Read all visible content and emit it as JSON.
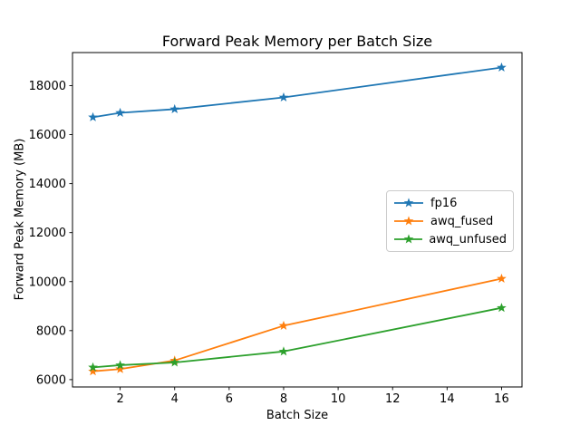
{
  "chart_data": {
    "type": "line",
    "title": "Forward Peak Memory per Batch Size",
    "xlabel": "Batch Size",
    "ylabel": "Forward Peak Memory (MB)",
    "x": [
      1,
      2,
      4,
      8,
      16
    ],
    "series": [
      {
        "name": "fp16",
        "color": "#1f77b4",
        "marker": "star",
        "values": [
          16710,
          16890,
          17040,
          17520,
          18740
        ]
      },
      {
        "name": "awq_fused",
        "color": "#ff7f0e",
        "marker": "star",
        "values": [
          6340,
          6430,
          6780,
          8200,
          10120
        ]
      },
      {
        "name": "awq_unfused",
        "color": "#2ca02c",
        "marker": "star",
        "values": [
          6500,
          6590,
          6700,
          7150,
          8930
        ]
      }
    ],
    "xticks": [
      2,
      4,
      6,
      8,
      10,
      12,
      14,
      16
    ],
    "yticks": [
      6000,
      8000,
      10000,
      12000,
      14000,
      16000,
      18000
    ],
    "xlim": [
      0.25,
      16.75
    ],
    "ylim": [
      5700,
      19350
    ],
    "grid": false,
    "legend_position": "center-right",
    "frame_color": "#000000",
    "background": "#ffffff"
  }
}
